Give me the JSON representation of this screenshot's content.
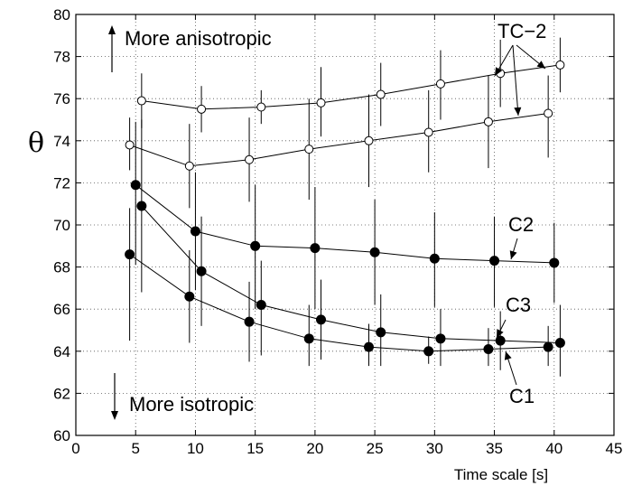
{
  "chart_data": {
    "type": "line",
    "title": "",
    "xlabel": "Time scale [s]",
    "ylabel": "θ",
    "xlim": [
      0,
      45
    ],
    "ylim": [
      60,
      80
    ],
    "xticks": [
      0,
      5,
      10,
      15,
      20,
      25,
      30,
      35,
      40,
      45
    ],
    "yticks": [
      60,
      62,
      64,
      66,
      68,
      70,
      72,
      74,
      76,
      78,
      80
    ],
    "grid": true,
    "series": [
      {
        "name": "TC-2 upper",
        "marker": "open-circle",
        "points": [
          {
            "x": 5.5,
            "y": 75.9,
            "err": [
              74.6,
              77.2
            ]
          },
          {
            "x": 10.5,
            "y": 75.5,
            "err": [
              74.4,
              76.6
            ]
          },
          {
            "x": 15.5,
            "y": 75.6,
            "err": [
              74.8,
              76.4
            ]
          },
          {
            "x": 20.5,
            "y": 75.8,
            "err": [
              74.2,
              77.5
            ]
          },
          {
            "x": 25.5,
            "y": 76.2,
            "err": [
              74.7,
              77.7
            ]
          },
          {
            "x": 30.5,
            "y": 76.7,
            "err": [
              75.0,
              78.3
            ]
          },
          {
            "x": 35.5,
            "y": 77.2,
            "err": [
              75.6,
              78.8
            ]
          },
          {
            "x": 40.5,
            "y": 77.6,
            "err": [
              76.3,
              78.9
            ]
          }
        ]
      },
      {
        "name": "TC-2 lower",
        "marker": "open-circle",
        "points": [
          {
            "x": 4.5,
            "y": 73.8,
            "err": [
              72.6,
              75.1
            ]
          },
          {
            "x": 9.5,
            "y": 72.8,
            "err": [
              70.8,
              74.8
            ]
          },
          {
            "x": 14.5,
            "y": 73.1,
            "err": [
              71.1,
              75.1
            ]
          },
          {
            "x": 19.5,
            "y": 73.6,
            "err": [
              71.2,
              76.0
            ]
          },
          {
            "x": 24.5,
            "y": 74.0,
            "err": [
              71.8,
              76.2
            ]
          },
          {
            "x": 29.5,
            "y": 74.4,
            "err": [
              72.5,
              76.4
            ]
          },
          {
            "x": 34.5,
            "y": 74.9,
            "err": [
              72.7,
              77.1
            ]
          },
          {
            "x": 39.5,
            "y": 75.3,
            "err": [
              73.2,
              77.1
            ]
          }
        ]
      },
      {
        "name": "C2",
        "marker": "filled-circle",
        "points": [
          {
            "x": 5.0,
            "y": 71.9,
            "err": [
              68.1,
              74.9
            ]
          },
          {
            "x": 10.0,
            "y": 69.7,
            "err": [
              66.9,
              72.5
            ]
          },
          {
            "x": 15.0,
            "y": 69.0,
            "err": [
              66.0,
              71.9
            ]
          },
          {
            "x": 20.0,
            "y": 68.9,
            "err": [
              66.0,
              71.8
            ]
          },
          {
            "x": 25.0,
            "y": 68.7,
            "err": [
              66.2,
              71.2
            ]
          },
          {
            "x": 30.0,
            "y": 68.4,
            "err": [
              66.1,
              70.6
            ]
          },
          {
            "x": 35.0,
            "y": 68.3,
            "err": [
              66.1,
              70.4
            ]
          },
          {
            "x": 40.0,
            "y": 68.2,
            "err": [
              66.3,
              70.1
            ]
          }
        ]
      },
      {
        "name": "C3",
        "marker": "filled-circle",
        "points": [
          {
            "x": 5.5,
            "y": 70.9,
            "err": [
              66.8,
              75.0
            ]
          },
          {
            "x": 10.5,
            "y": 67.8,
            "err": [
              65.2,
              70.4
            ]
          },
          {
            "x": 15.5,
            "y": 66.2,
            "err": [
              63.8,
              68.3
            ]
          },
          {
            "x": 20.5,
            "y": 65.5,
            "err": [
              63.6,
              67.4
            ]
          },
          {
            "x": 25.5,
            "y": 64.9,
            "err": [
              63.3,
              66.7
            ]
          },
          {
            "x": 30.5,
            "y": 64.6,
            "err": [
              63.3,
              66.0
            ]
          },
          {
            "x": 35.5,
            "y": 64.5,
            "err": [
              63.1,
              65.9
            ]
          },
          {
            "x": 40.5,
            "y": 64.4,
            "err": [
              62.8,
              66.2
            ]
          }
        ]
      },
      {
        "name": "C1",
        "marker": "filled-circle",
        "points": [
          {
            "x": 4.5,
            "y": 68.6,
            "err": [
              64.5,
              70.8
            ]
          },
          {
            "x": 9.5,
            "y": 66.6,
            "err": [
              64.4,
              68.8
            ]
          },
          {
            "x": 14.5,
            "y": 65.4,
            "err": [
              63.5,
              67.3
            ]
          },
          {
            "x": 19.5,
            "y": 64.6,
            "err": [
              63.3,
              66.2
            ]
          },
          {
            "x": 24.5,
            "y": 64.2,
            "err": [
              63.3,
              65.3
            ]
          },
          {
            "x": 29.5,
            "y": 64.0,
            "err": [
              63.4,
              64.7
            ]
          },
          {
            "x": 34.5,
            "y": 64.1,
            "err": [
              63.3,
              65.1
            ]
          },
          {
            "x": 39.5,
            "y": 64.2,
            "err": [
              63.3,
              65.2
            ]
          }
        ]
      }
    ],
    "annotations": {
      "more_anisotropic": "More anisotropic",
      "more_isotropic": "More isotropic",
      "tc2": "TC−2",
      "c2": "C2",
      "c3": "C3",
      "c1": "C1"
    }
  }
}
